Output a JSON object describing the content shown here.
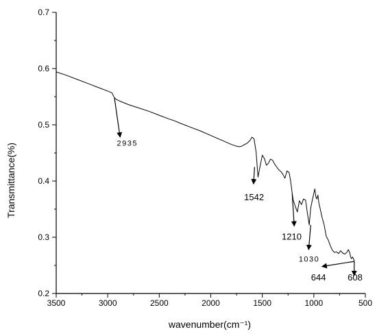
{
  "chart_data": {
    "type": "line",
    "title": "",
    "xlabel": "wavenumber(cm⁻¹)",
    "ylabel": "Transmittance(%)",
    "xlim": [
      3500,
      500
    ],
    "ylim": [
      0.2,
      0.7
    ],
    "x_reversed": true,
    "grid": false,
    "x_ticks": [
      3500,
      3000,
      2500,
      2000,
      1500,
      1000,
      500
    ],
    "x_tick_labels": [
      "3500",
      "3000",
      "2500",
      "2000",
      "1500",
      "1000",
      "500"
    ],
    "y_ticks": [
      0.2,
      0.3,
      0.4,
      0.5,
      0.6,
      0.7
    ],
    "y_tick_labels": [
      "0.2",
      "0.3",
      "0.4",
      "0.5",
      "0.6",
      "0.7"
    ],
    "series": [
      {
        "name": "",
        "color": "#000000",
        "x": [
          3500,
          3400,
          3300,
          3200,
          3100,
          3000,
          2960,
          2935,
          2915,
          2880,
          2800,
          2700,
          2600,
          2500,
          2400,
          2350,
          2300,
          2200,
          2100,
          2000,
          1900,
          1800,
          1750,
          1720,
          1700,
          1680,
          1650,
          1620,
          1600,
          1580,
          1560,
          1542,
          1525,
          1500,
          1480,
          1460,
          1440,
          1420,
          1400,
          1380,
          1360,
          1340,
          1320,
          1300,
          1280,
          1260,
          1240,
          1225,
          1210,
          1200,
          1180,
          1160,
          1140,
          1120,
          1100,
          1080,
          1060,
          1045,
          1030,
          1010,
          990,
          980,
          970,
          960,
          950,
          940,
          920,
          900,
          880,
          860,
          840,
          820,
          800,
          780,
          760,
          740,
          720,
          700,
          680,
          665,
          650,
          644,
          635,
          625,
          615,
          608
        ],
        "y": [
          0.594,
          0.588,
          0.581,
          0.574,
          0.567,
          0.56,
          0.557,
          0.548,
          0.545,
          0.542,
          0.536,
          0.53,
          0.524,
          0.517,
          0.51,
          0.507,
          0.503,
          0.496,
          0.489,
          0.481,
          0.473,
          0.465,
          0.462,
          0.461,
          0.462,
          0.464,
          0.467,
          0.472,
          0.478,
          0.475,
          0.452,
          0.407,
          0.423,
          0.446,
          0.44,
          0.428,
          0.432,
          0.439,
          0.437,
          0.43,
          0.425,
          0.42,
          0.417,
          0.412,
          0.405,
          0.418,
          0.415,
          0.4,
          0.378,
          0.366,
          0.355,
          0.345,
          0.365,
          0.358,
          0.368,
          0.366,
          0.34,
          0.322,
          0.352,
          0.37,
          0.386,
          0.372,
          0.368,
          0.375,
          0.36,
          0.352,
          0.335,
          0.322,
          0.302,
          0.295,
          0.285,
          0.277,
          0.273,
          0.274,
          0.271,
          0.276,
          0.272,
          0.27,
          0.273,
          0.278,
          0.272,
          0.265,
          0.262,
          0.265,
          0.262,
          0.258
        ]
      }
    ],
    "annotations": [
      {
        "text": "2935",
        "x": 2935,
        "y": 0.548,
        "label_x": 2880,
        "label_y": 0.478,
        "text_x": 2810,
        "text_y": 0.463,
        "size": 11,
        "spaced": true
      },
      {
        "text": "1542",
        "x": 1575,
        "y": 0.425,
        "label_x": 1585,
        "label_y": 0.395,
        "text_x": 1580,
        "text_y": 0.366,
        "size": 13,
        "spaced": false
      },
      {
        "text": "1210",
        "x": 1210,
        "y": 0.378,
        "label_x": 1190,
        "label_y": 0.32,
        "text_x": 1215,
        "text_y": 0.296,
        "size": 13,
        "spaced": false
      },
      {
        "text": "1030",
        "x": 1030,
        "y": 0.322,
        "label_x": 1050,
        "label_y": 0.278,
        "text_x": 1045,
        "text_y": 0.257,
        "size": 11,
        "spaced": true
      },
      {
        "text": "644",
        "x": 610,
        "y": 0.257,
        "label_x": 920,
        "label_y": 0.248,
        "text_x": 955,
        "text_y": 0.223,
        "size": 13,
        "spaced": false
      },
      {
        "text": "608",
        "x": 608,
        "y": 0.258,
        "label_x": 608,
        "label_y": 0.232,
        "text_x": 600,
        "text_y": 0.223,
        "size": 13,
        "spaced": false
      }
    ]
  }
}
